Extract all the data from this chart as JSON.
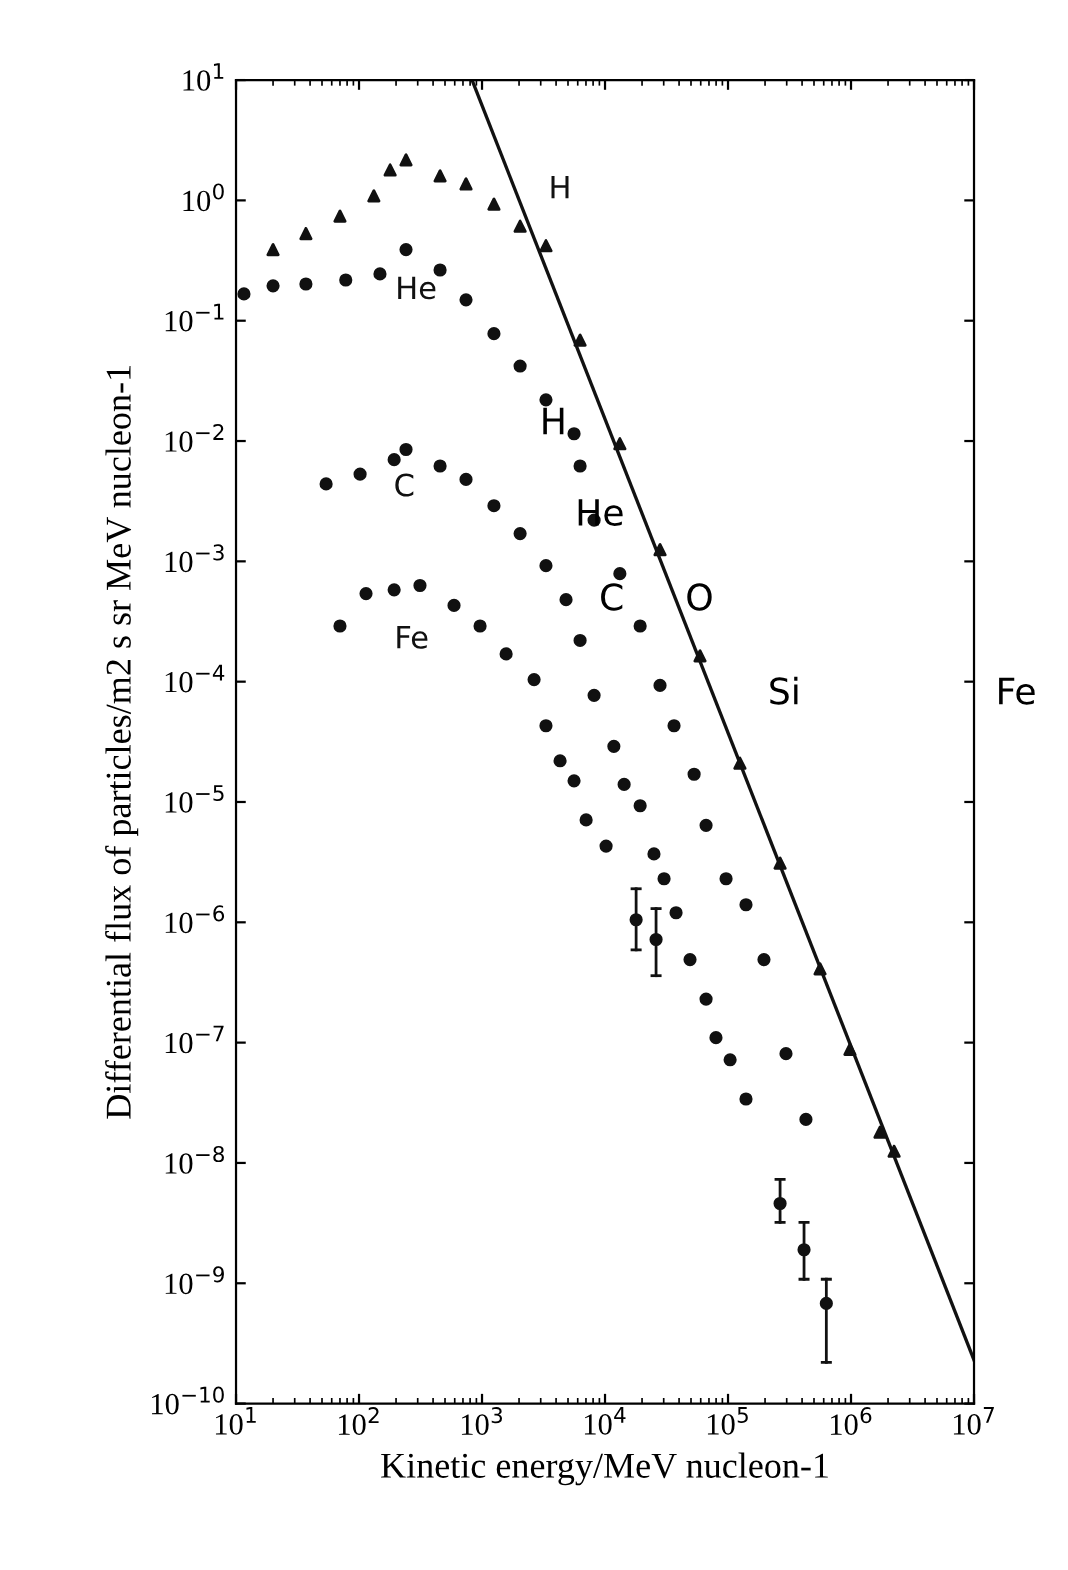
{
  "chart_data": {
    "type": "scatter",
    "xlabel": "Kinetic energy/MeV nucleon-1",
    "ylabel": "Differential flux of particles/m2 s sr MeV nucleon-1",
    "log": "xy",
    "grid": false,
    "legend": false,
    "xlim": [
      10,
      10000000
    ],
    "ylim": [
      1e-10,
      10
    ],
    "xticks": [
      {
        "value": 10,
        "label": "10$^{1}$"
      },
      {
        "value": 100,
        "label": "10$^{2}$"
      },
      {
        "value": 1000,
        "label": "10$^{3}$"
      },
      {
        "value": 10000,
        "label": "10$^{4}$"
      },
      {
        "value": 100000,
        "label": "10$^{5}$"
      },
      {
        "value": 1000000,
        "label": "10$^{6}$"
      },
      {
        "value": 10000000,
        "label": "10$^{7}$"
      }
    ],
    "yticks": [
      {
        "value": 1e-10,
        "label": "10$^{−10}$"
      },
      {
        "value": 1e-09,
        "label": "10$^{−9}$"
      },
      {
        "value": 1e-08,
        "label": "10$^{−8}$"
      },
      {
        "value": 1e-07,
        "label": "10$^{−7}$"
      },
      {
        "value": 1e-06,
        "label": "10$^{−6}$"
      },
      {
        "value": 1e-05,
        "label": "10$^{−5}$"
      },
      {
        "value": 0.0001,
        "label": "10$^{−4}$"
      },
      {
        "value": 0.001,
        "label": "10$^{−3}$"
      },
      {
        "value": 0.01,
        "label": "10$^{−2}$"
      },
      {
        "value": 0.1,
        "label": "10$^{−1}$"
      },
      {
        "value": 1,
        "label": "10$^{0}$"
      },
      {
        "value": 10,
        "label": "10$^{1}$"
      }
    ],
    "series": [
      {
        "name": "H",
        "marker": "triangle",
        "color": "#111111",
        "x": [
          20,
          37,
          70,
          132,
          179,
          241,
          456,
          741,
          1250,
          2040,
          3310,
          6270,
          13200,
          28000,
          59200,
          125000,
          265000,
          560000,
          980000,
          1720000,
          2240000
        ],
        "values": [
          0.39,
          0.53,
          0.74,
          1.09,
          1.79,
          2.17,
          1.6,
          1.37,
          0.93,
          0.61,
          0.42,
          0.069,
          0.0095,
          0.00125,
          0.000164,
          2.1e-05,
          3.1e-06,
          4.1e-07,
          8.8e-08,
          1.8e-08,
          1.25e-08
        ]
      },
      {
        "name": "He",
        "marker": "circle",
        "color": "#111111",
        "x": [
          11.6,
          20,
          37,
          78,
          148,
          241,
          456,
          741,
          1250,
          2040,
          3310,
          5600,
          6270,
          8150,
          13200,
          19300,
          28000,
          36400,
          53000,
          66300,
          96400,
          140000,
          196000,
          296000,
          430000
        ],
        "values": [
          0.167,
          0.195,
          0.202,
          0.218,
          0.245,
          0.39,
          0.264,
          0.149,
          0.078,
          0.042,
          0.022,
          0.0115,
          0.0062,
          0.0022,
          0.00079,
          0.00029,
          9.3e-05,
          4.3e-05,
          1.7e-05,
          6.4e-06,
          2.3e-06,
          1.4e-06,
          4.9e-07,
          8.1e-08,
          2.3e-08
        ]
      },
      {
        "name": "C",
        "marker": "circle",
        "color": "#111111",
        "x": [
          54,
          102,
          193,
          241,
          456,
          741,
          1250,
          2040,
          3310,
          4820,
          6270,
          8150,
          11800,
          14300,
          19300,
          25000,
          30200,
          37800,
          49100,
          66300,
          79800,
          104000,
          140000
        ],
        "values": [
          0.0044,
          0.0053,
          0.007,
          0.0085,
          0.0062,
          0.0048,
          0.0029,
          0.0017,
          0.00092,
          0.00048,
          0.00022,
          7.7e-05,
          2.9e-05,
          1.4e-05,
          9.3e-06,
          3.7e-06,
          2.3e-06,
          1.2e-06,
          4.9e-07,
          2.3e-07,
          1.1e-07,
          7.2e-08,
          3.4e-08
        ]
      },
      {
        "name": "Fe",
        "marker": "circle",
        "color": "#111111",
        "x": [
          70,
          114,
          193,
          313,
          592,
          964,
          1570,
          2650,
          3310,
          4310,
          5600,
          7020,
          10200,
          17900,
          26000,
          265000,
          415000,
          630000
        ],
        "values": [
          0.00029,
          0.00054,
          0.00058,
          0.00063,
          0.00043,
          0.00029,
          0.00017,
          0.000104,
          4.3e-05,
          2.2e-05,
          1.5e-05,
          7.1e-06,
          4.3e-06,
          1.05e-06,
          7.2e-07,
          4.6e-09,
          1.9e-09,
          6.8e-10
        ],
        "errors": [
          null,
          null,
          null,
          null,
          null,
          null,
          null,
          null,
          null,
          null,
          null,
          null,
          null,
          [
            5.9e-07,
            1.9e-06
          ],
          [
            3.6e-07,
            1.3e-06
          ],
          [
            3.2e-09,
            7.3e-09
          ],
          [
            1.08e-09,
            3.2e-09
          ],
          [
            2.2e-10,
            1.08e-09
          ]
        ]
      },
      {
        "type": "line",
        "color": "#111111",
        "x": [
          830,
          10000000
        ],
        "values": [
          10,
          2.3e-10
        ]
      }
    ],
    "annotations": [
      "H",
      "He",
      "C",
      "O",
      "Si",
      "Fe"
    ]
  }
}
